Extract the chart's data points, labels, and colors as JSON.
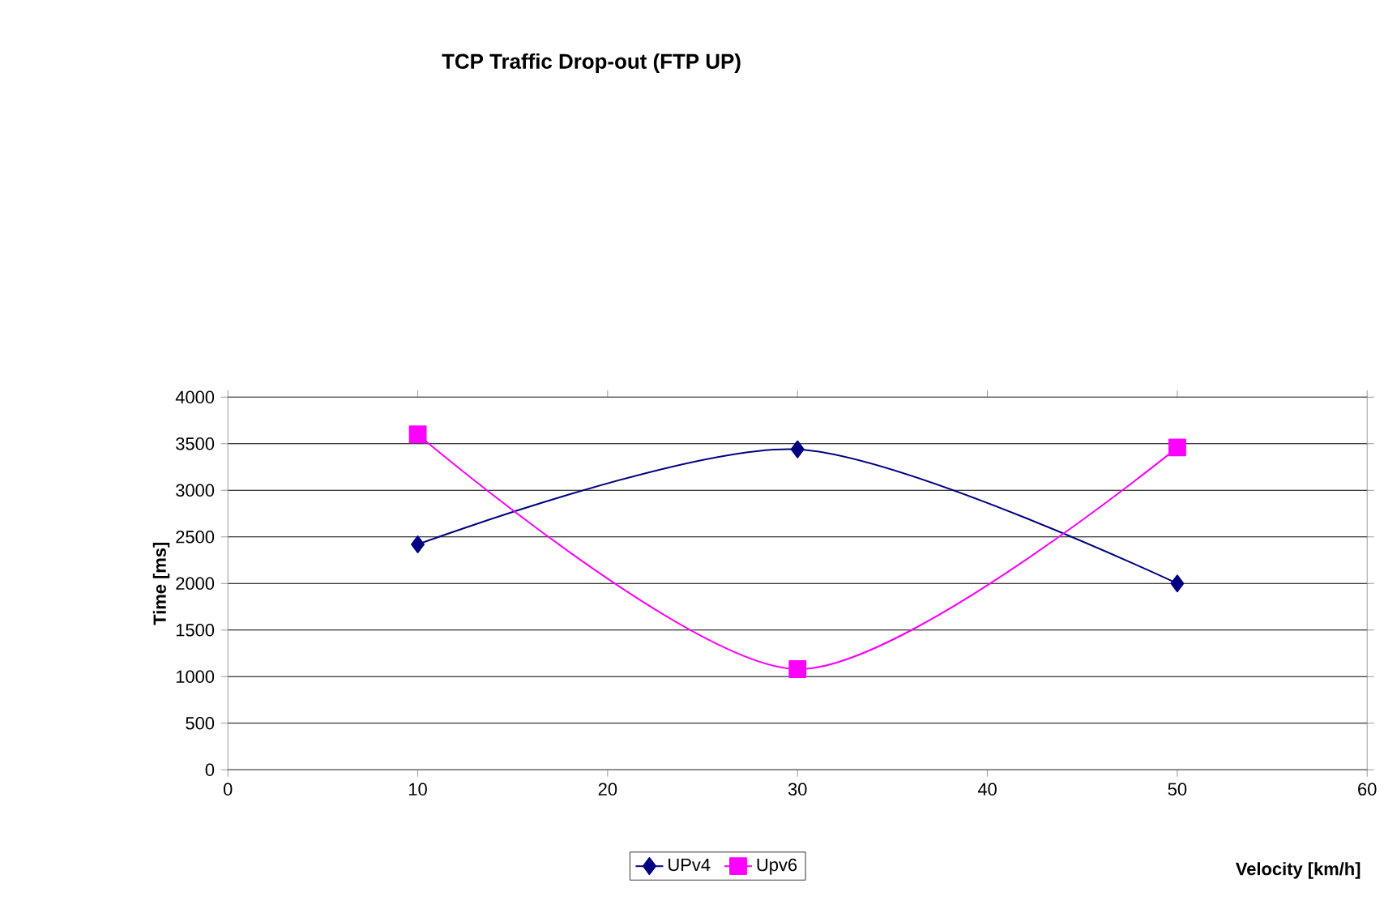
{
  "chart_data": {
    "type": "line",
    "title": "TCP Traffic Drop-out (FTP UP)",
    "xlabel": "Velocity [km/h]",
    "ylabel": "Time [ms]",
    "x": [
      10,
      30,
      50
    ],
    "series": [
      {
        "name": "UPv4",
        "color": "#000080",
        "marker": "diamond",
        "values": [
          2420,
          3440,
          2000
        ]
      },
      {
        "name": "Upv6",
        "color": "#ff00ff",
        "marker": "square",
        "values": [
          3600,
          1080,
          3460
        ]
      }
    ],
    "xlim": [
      0,
      60
    ],
    "xticks": [
      0,
      10,
      20,
      30,
      40,
      50,
      60
    ],
    "ylim": [
      0,
      4000
    ],
    "yticks": [
      0,
      500,
      1000,
      1500,
      2000,
      2500,
      3000,
      3500,
      4000
    ],
    "grid": "y",
    "legend": "bottom"
  }
}
